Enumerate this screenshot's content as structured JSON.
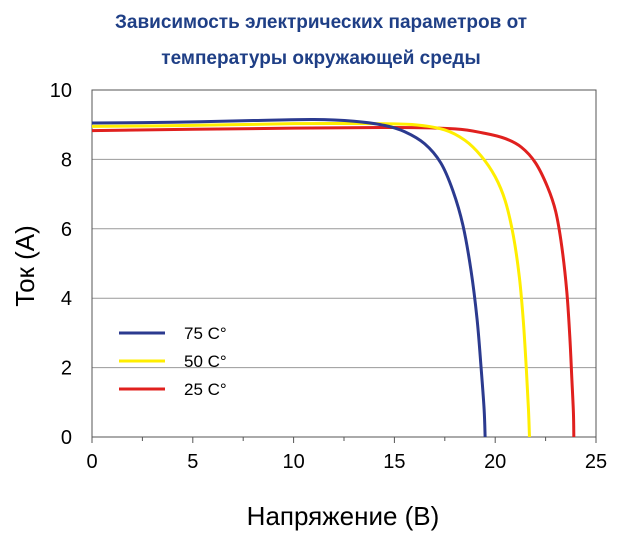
{
  "chart_data": {
    "type": "line",
    "title_line1": "Зависимость электрических параметров от",
    "title_line2": "температуры окружающей среды",
    "xlabel": "Напряжение (В)",
    "ylabel": "Ток (А)",
    "xlim": [
      0,
      25
    ],
    "ylim": [
      0,
      10
    ],
    "x_ticks": [
      0,
      5,
      10,
      15,
      20,
      25
    ],
    "y_ticks": [
      0,
      2,
      4,
      6,
      8,
      10
    ],
    "y_grid": true,
    "legend_position": "bottom-left",
    "series": [
      {
        "name": "75 C°",
        "color": "#2b3a8f",
        "points": [
          [
            0,
            9.05
          ],
          [
            4,
            9.07
          ],
          [
            8,
            9.12
          ],
          [
            11,
            9.15
          ],
          [
            13,
            9.1
          ],
          [
            14.5,
            8.98
          ],
          [
            15.5,
            8.8
          ],
          [
            16.5,
            8.45
          ],
          [
            17.3,
            7.9
          ],
          [
            17.9,
            7.1
          ],
          [
            18.4,
            6.1
          ],
          [
            18.8,
            4.8
          ],
          [
            19.1,
            3.4
          ],
          [
            19.3,
            2.0
          ],
          [
            19.45,
            0.8
          ],
          [
            19.5,
            0
          ]
        ]
      },
      {
        "name": "50 C°",
        "color": "#ffee00",
        "points": [
          [
            0,
            8.95
          ],
          [
            5,
            8.98
          ],
          [
            10,
            9.03
          ],
          [
            14,
            9.03
          ],
          [
            16,
            9.0
          ],
          [
            17.5,
            8.85
          ],
          [
            18.5,
            8.55
          ],
          [
            19.3,
            8.1
          ],
          [
            20,
            7.5
          ],
          [
            20.5,
            6.8
          ],
          [
            20.9,
            5.8
          ],
          [
            21.2,
            4.6
          ],
          [
            21.4,
            3.3
          ],
          [
            21.55,
            1.9
          ],
          [
            21.65,
            0.8
          ],
          [
            21.7,
            0
          ]
        ]
      },
      {
        "name": "25 C°",
        "color": "#e0201e",
        "points": [
          [
            0,
            8.83
          ],
          [
            5,
            8.87
          ],
          [
            10,
            8.9
          ],
          [
            15,
            8.92
          ],
          [
            18,
            8.88
          ],
          [
            19.5,
            8.75
          ],
          [
            20.5,
            8.6
          ],
          [
            21.3,
            8.35
          ],
          [
            22,
            7.9
          ],
          [
            22.6,
            7.2
          ],
          [
            23,
            6.5
          ],
          [
            23.3,
            5.5
          ],
          [
            23.55,
            4.2
          ],
          [
            23.7,
            2.9
          ],
          [
            23.8,
            1.7
          ],
          [
            23.88,
            0.7
          ],
          [
            23.9,
            0
          ]
        ]
      }
    ]
  }
}
